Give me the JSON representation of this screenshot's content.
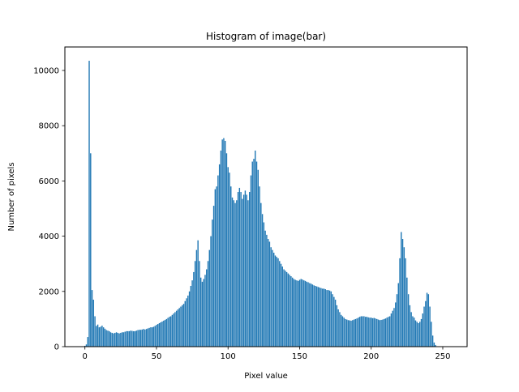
{
  "chart_data": {
    "type": "bar",
    "title": "Histogram of image(bar)",
    "xlabel": "Pixel value",
    "ylabel": "Number of pixels",
    "xlim": [
      -14.0,
      267.0
    ],
    "ylim": [
      0,
      10850
    ],
    "xticks": [
      0,
      50,
      100,
      150,
      200,
      250
    ],
    "yticks": [
      0,
      2000,
      4000,
      6000,
      8000,
      10000
    ],
    "grid": false,
    "bar_color": "#1f77b4",
    "x_start": 0,
    "values": [
      30,
      80,
      350,
      10350,
      7000,
      2050,
      1700,
      1100,
      750,
      800,
      700,
      720,
      760,
      700,
      650,
      600,
      580,
      560,
      520,
      500,
      480,
      500,
      520,
      500,
      480,
      500,
      520,
      520,
      540,
      560,
      560,
      560,
      580,
      570,
      560,
      560,
      580,
      600,
      610,
      610,
      620,
      640,
      620,
      640,
      660,
      680,
      700,
      700,
      720,
      750,
      790,
      820,
      850,
      880,
      910,
      940,
      970,
      1000,
      1040,
      1080,
      1100,
      1150,
      1200,
      1250,
      1300,
      1350,
      1400,
      1450,
      1500,
      1550,
      1650,
      1750,
      1850,
      2000,
      2200,
      2400,
      2700,
      3100,
      3500,
      3850,
      3100,
      2500,
      2350,
      2450,
      2600,
      2800,
      3100,
      3500,
      4000,
      4600,
      5100,
      5700,
      5800,
      6200,
      6600,
      7100,
      7500,
      7550,
      7450,
      7000,
      6500,
      6300,
      5800,
      5400,
      5300,
      5200,
      5300,
      5600,
      5750,
      5600,
      5350,
      5500,
      5650,
      5500,
      5300,
      5600,
      6200,
      6700,
      6800,
      7100,
      6700,
      6400,
      5800,
      5200,
      4800,
      4500,
      4200,
      4050,
      3900,
      3800,
      3600,
      3500,
      3400,
      3300,
      3250,
      3200,
      3100,
      3000,
      2900,
      2800,
      2750,
      2700,
      2650,
      2600,
      2550,
      2500,
      2450,
      2420,
      2400,
      2380,
      2420,
      2450,
      2430,
      2400,
      2380,
      2350,
      2330,
      2300,
      2280,
      2250,
      2220,
      2200,
      2180,
      2160,
      2140,
      2120,
      2100,
      2100,
      2080,
      2050,
      2050,
      2030,
      2000,
      1900,
      1800,
      1700,
      1500,
      1350,
      1250,
      1150,
      1100,
      1050,
      1000,
      980,
      960,
      950,
      940,
      960,
      980,
      1000,
      1020,
      1050,
      1080,
      1100,
      1100,
      1100,
      1080,
      1080,
      1060,
      1050,
      1050,
      1030,
      1040,
      1020,
      1000,
      980,
      960,
      970,
      980,
      1000,
      1020,
      1050,
      1080,
      1100,
      1200,
      1300,
      1400,
      1600,
      1900,
      2300,
      3200,
      4150,
      3900,
      3600,
      3200,
      2500,
      1900,
      1500,
      1250,
      1100,
      1050,
      950,
      900,
      850,
      900,
      1000,
      1200,
      1450,
      1650,
      1950,
      1900,
      1450,
      900,
      400,
      150,
      60
    ]
  }
}
